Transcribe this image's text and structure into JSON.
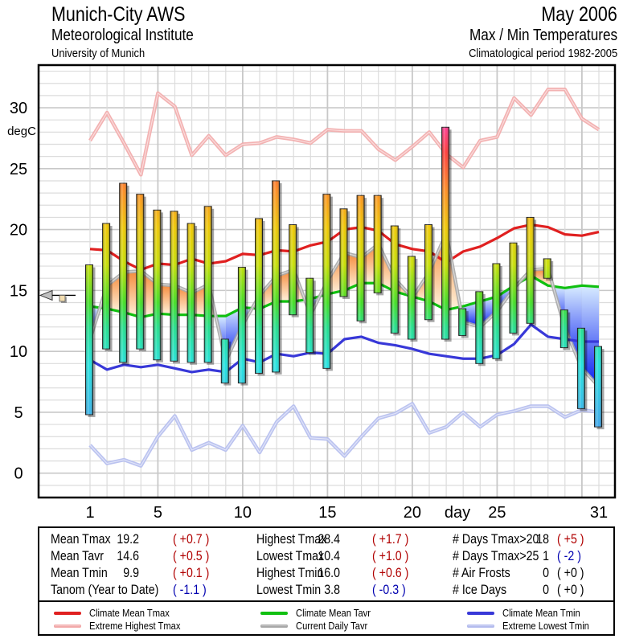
{
  "header": {
    "station": "Munich-City AWS",
    "institute": "Meteorological Institute",
    "university": "University of Munich",
    "month": "May 2006",
    "subtitle": "Max / Min Temperatures",
    "period": "Climatological period 1982-2005"
  },
  "chart_data": {
    "type": "bar",
    "title": "Max / Min Temperatures",
    "xlabel": "day",
    "ylabel": "degC",
    "xlim": [
      -1.8,
      32
    ],
    "ylim": [
      -2,
      33.5
    ],
    "grid": true,
    "y_ticks": [
      0,
      5,
      10,
      15,
      20,
      25,
      30
    ],
    "x_ticks": [
      1,
      5,
      10,
      15,
      20,
      25,
      31
    ],
    "x": [
      1,
      2,
      3,
      4,
      5,
      6,
      7,
      8,
      9,
      10,
      11,
      12,
      13,
      14,
      15,
      16,
      17,
      18,
      19,
      20,
      21,
      22,
      23,
      24,
      25,
      26,
      27,
      28,
      29,
      30,
      31
    ],
    "daily_tmax": [
      17.1,
      20.5,
      23.8,
      22.9,
      21.6,
      21.5,
      20.5,
      21.9,
      11.0,
      16.9,
      20.9,
      24.0,
      20.4,
      16.0,
      22.9,
      21.7,
      22.8,
      22.8,
      20.3,
      17.8,
      20.4,
      28.4,
      13.5,
      14.9,
      17.2,
      18.9,
      21.0,
      17.6,
      13.4,
      11.9,
      10.4
    ],
    "daily_tmin": [
      4.8,
      10.2,
      9.1,
      10.2,
      9.3,
      9.2,
      9.1,
      9.1,
      7.4,
      7.4,
      8.2,
      8.3,
      13.0,
      9.9,
      8.6,
      14.5,
      12.5,
      14.8,
      11.5,
      11.0,
      12.6,
      11.0,
      11.3,
      9.0,
      9.4,
      11.5,
      12.3,
      16.0,
      10.3,
      5.3,
      3.8
    ],
    "series": [
      {
        "name": "Climate Mean Tmax",
        "color": "#e02020",
        "values": [
          18.4,
          18.3,
          17.4,
          16.7,
          17.2,
          17.1,
          17.6,
          17.2,
          17.4,
          18.0,
          17.9,
          18.3,
          18.2,
          18.7,
          19.0,
          20.0,
          20.2,
          19.9,
          18.8,
          18.4,
          18.2,
          17.3,
          18.2,
          18.6,
          19.3,
          20.1,
          20.4,
          20.2,
          19.6,
          19.5,
          19.8
        ]
      },
      {
        "name": "Extreme Highest Tmax",
        "color": "#f2aaaa",
        "values": [
          27.3,
          29.6,
          27.1,
          24.5,
          31.2,
          30.1,
          26.1,
          27.7,
          26.1,
          27.0,
          27.1,
          27.6,
          27.4,
          27.1,
          28.2,
          28.1,
          28.1,
          26.6,
          25.7,
          26.8,
          28.0,
          26.2,
          25.1,
          27.3,
          27.6,
          30.8,
          29.4,
          31.5,
          31.5,
          29.1,
          28.2
        ]
      },
      {
        "name": "Climate Mean Tavr",
        "color": "#10c010",
        "values": [
          13.7,
          13.5,
          13.2,
          12.8,
          13.1,
          13.0,
          13.0,
          12.9,
          12.9,
          13.6,
          13.5,
          14.1,
          14.1,
          14.3,
          14.7,
          15.0,
          15.6,
          15.6,
          14.9,
          14.5,
          14.1,
          13.4,
          13.7,
          14.1,
          14.5,
          15.4,
          16.2,
          15.4,
          15.2,
          15.4,
          15.3
        ]
      },
      {
        "name": "Current Daily Tavr",
        "color": "#a8a8a8",
        "values": [
          11.0,
          15.4,
          16.5,
          16.6,
          15.5,
          15.4,
          14.8,
          15.5,
          9.2,
          12.2,
          14.6,
          16.2,
          16.7,
          13.0,
          15.8,
          18.1,
          17.7,
          18.8,
          15.9,
          14.4,
          16.5,
          19.7,
          12.4,
          12.0,
          13.3,
          15.2,
          16.7,
          16.8,
          11.9,
          8.6,
          7.1
        ]
      },
      {
        "name": "Climate Mean Tmin",
        "color": "#3838d8",
        "values": [
          9.3,
          8.5,
          8.9,
          8.7,
          8.9,
          8.6,
          8.3,
          8.5,
          8.3,
          9.4,
          9.1,
          9.8,
          9.6,
          9.9,
          9.8,
          11.0,
          11.2,
          10.7,
          10.5,
          10.2,
          9.8,
          9.6,
          9.4,
          9.4,
          9.7,
          10.6,
          12.2,
          11.2,
          11.0,
          10.8,
          10.8
        ]
      },
      {
        "name": "Extreme Lowest Tmin",
        "color": "#b4bcee",
        "values": [
          2.3,
          0.8,
          1.1,
          0.6,
          3.0,
          4.7,
          1.9,
          2.5,
          1.9,
          3.9,
          1.7,
          4.2,
          5.5,
          2.9,
          2.8,
          1.4,
          3.0,
          4.5,
          4.9,
          5.7,
          3.3,
          3.8,
          5.0,
          3.8,
          4.8,
          5.1,
          5.5,
          5.5,
          4.6,
          5.2,
          5.0
        ]
      }
    ],
    "mean_tavr_marker": 14.6,
    "mean_tavr_anomaly": 0.5,
    "colors": {
      "warm_fill": "#f59a50",
      "cold_fill": "#3a70f0"
    }
  },
  "axis": {
    "y_unit": "degC",
    "x_label": "day",
    "y_tick_labels": [
      "0",
      "5",
      "10",
      "15",
      "20",
      "25",
      "30"
    ],
    "x_tick_labels": [
      "1",
      "5",
      "10",
      "15",
      "20",
      "25",
      "31"
    ]
  },
  "stats": {
    "col1": [
      {
        "label": "Mean Tmax",
        "value": "19.2",
        "anom": "( +0.7 )",
        "sign": "pos"
      },
      {
        "label": "Mean Tavr",
        "value": "14.6",
        "anom": "( +0.5 )",
        "sign": "pos"
      },
      {
        "label": "Mean Tmin",
        "value": "9.9",
        "anom": "( +0.1 )",
        "sign": "pos"
      },
      {
        "label": "Tanom (Year to Date)",
        "value": "",
        "anom": "( -1.1 )",
        "sign": "neg"
      }
    ],
    "col2": [
      {
        "label": "Highest Tmax",
        "value": "28.4",
        "anom": "( +1.7 )",
        "sign": "pos"
      },
      {
        "label": "Lowest Tmax",
        "value": "10.4",
        "anom": "( +1.0 )",
        "sign": "pos"
      },
      {
        "label": "Highest Tmin",
        "value": "16.0",
        "anom": "( +0.6 )",
        "sign": "pos"
      },
      {
        "label": "Lowest Tmin",
        "value": "3.8",
        "anom": "( -0.3 )",
        "sign": "neg"
      }
    ],
    "col3": [
      {
        "label": "# Days Tmax>20",
        "value": "18",
        "anom": "( +5 )",
        "sign": "pos"
      },
      {
        "label": "# Days Tmax>25",
        "value": "1",
        "anom": "( -2 )",
        "sign": "neg"
      },
      {
        "label": "# Air Frosts",
        "value": "0",
        "anom": "( +0 )",
        "sign": "zero"
      },
      {
        "label": "# Ice Days",
        "value": "0",
        "anom": "( +0 )",
        "sign": "zero"
      }
    ]
  },
  "legend": [
    {
      "label": "Climate Mean Tmax",
      "color": "#e02020",
      "style": "solid"
    },
    {
      "label": "Extreme Highest Tmax",
      "color": "#f2aaaa",
      "style": "double"
    },
    {
      "label": "Climate Mean Tavr",
      "color": "#10c010",
      "style": "solid"
    },
    {
      "label": "Current Daily Tavr",
      "color": "#a8a8a8",
      "style": "double"
    },
    {
      "label": "Climate Mean Tmin",
      "color": "#3838d8",
      "style": "solid"
    },
    {
      "label": "Extreme Lowest Tmin",
      "color": "#b4bcee",
      "style": "double"
    }
  ]
}
